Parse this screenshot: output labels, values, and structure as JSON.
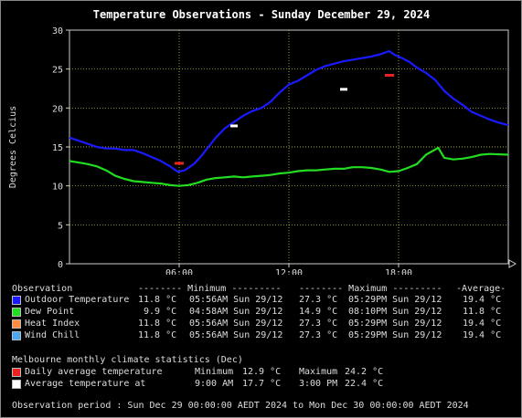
{
  "chart_data": {
    "type": "line",
    "title": "Temperature Observations - Sunday December 29, 2024",
    "ylabel": "Degrees Celcius",
    "xlabel": "",
    "ylim": [
      0,
      30
    ],
    "xlim": [
      0,
      24
    ],
    "yticks": [
      "0",
      "5",
      "10",
      "15",
      "20",
      "25",
      "30"
    ],
    "xticks": [
      {
        "x": 6,
        "label": "06:00"
      },
      {
        "x": 12,
        "label": "12:00"
      },
      {
        "x": 18,
        "label": "18:00"
      }
    ],
    "grid": true,
    "series": [
      {
        "name": "Outdoor Temperature",
        "color": "#1a1aff",
        "points": [
          [
            0,
            16.2
          ],
          [
            0.5,
            15.8
          ],
          [
            1,
            15.4
          ],
          [
            1.5,
            15.0
          ],
          [
            2,
            14.8
          ],
          [
            2.5,
            14.8
          ],
          [
            3,
            14.6
          ],
          [
            3.5,
            14.6
          ],
          [
            4,
            14.2
          ],
          [
            4.5,
            13.7
          ],
          [
            5,
            13.2
          ],
          [
            5.5,
            12.5
          ],
          [
            5.93,
            11.8
          ],
          [
            6.3,
            12.0
          ],
          [
            6.8,
            12.8
          ],
          [
            7.2,
            13.8
          ],
          [
            7.6,
            15.0
          ],
          [
            8,
            16.2
          ],
          [
            8.5,
            17.4
          ],
          [
            9,
            18.2
          ],
          [
            9.5,
            19.0
          ],
          [
            10,
            19.6
          ],
          [
            10.5,
            20.0
          ],
          [
            11,
            20.8
          ],
          [
            11.5,
            22.0
          ],
          [
            12,
            23.0
          ],
          [
            12.5,
            23.5
          ],
          [
            13,
            24.2
          ],
          [
            13.5,
            24.9
          ],
          [
            14,
            25.4
          ],
          [
            14.5,
            25.7
          ],
          [
            15,
            26.0
          ],
          [
            15.5,
            26.2
          ],
          [
            16,
            26.4
          ],
          [
            16.5,
            26.6
          ],
          [
            17,
            26.9
          ],
          [
            17.48,
            27.3
          ],
          [
            17.8,
            26.8
          ],
          [
            18.2,
            26.4
          ],
          [
            18.6,
            25.9
          ],
          [
            19,
            25.2
          ],
          [
            19.5,
            24.5
          ],
          [
            20,
            23.6
          ],
          [
            20.5,
            22.2
          ],
          [
            21,
            21.2
          ],
          [
            21.5,
            20.4
          ],
          [
            22,
            19.5
          ],
          [
            22.5,
            19.0
          ],
          [
            23,
            18.5
          ],
          [
            23.5,
            18.1
          ],
          [
            24,
            17.8
          ]
        ]
      },
      {
        "name": "Dew Point",
        "color": "#22dd22",
        "points": [
          [
            0,
            13.2
          ],
          [
            0.5,
            13.0
          ],
          [
            1,
            12.8
          ],
          [
            1.5,
            12.5
          ],
          [
            2,
            12.0
          ],
          [
            2.5,
            11.3
          ],
          [
            3,
            10.9
          ],
          [
            3.5,
            10.6
          ],
          [
            4,
            10.5
          ],
          [
            4.5,
            10.4
          ],
          [
            5,
            10.3
          ],
          [
            5.5,
            10.1
          ],
          [
            6,
            10.0
          ],
          [
            6.5,
            10.1
          ],
          [
            7,
            10.4
          ],
          [
            7.5,
            10.8
          ],
          [
            8,
            11.0
          ],
          [
            8.5,
            11.1
          ],
          [
            9,
            11.2
          ],
          [
            9.5,
            11.1
          ],
          [
            10,
            11.2
          ],
          [
            10.5,
            11.3
          ],
          [
            11,
            11.4
          ],
          [
            11.5,
            11.6
          ],
          [
            12,
            11.7
          ],
          [
            12.5,
            11.9
          ],
          [
            13,
            12.0
          ],
          [
            13.5,
            12.0
          ],
          [
            14,
            12.1
          ],
          [
            14.5,
            12.2
          ],
          [
            15,
            12.2
          ],
          [
            15.5,
            12.4
          ],
          [
            16,
            12.4
          ],
          [
            16.5,
            12.3
          ],
          [
            17,
            12.1
          ],
          [
            17.5,
            11.8
          ],
          [
            18,
            11.9
          ],
          [
            18.5,
            12.3
          ],
          [
            19,
            12.8
          ],
          [
            19.5,
            14.0
          ],
          [
            20.17,
            14.9
          ],
          [
            20.5,
            13.6
          ],
          [
            21,
            13.4
          ],
          [
            21.5,
            13.5
          ],
          [
            22,
            13.7
          ],
          [
            22.5,
            14.0
          ],
          [
            23,
            14.1
          ],
          [
            24,
            14.0
          ]
        ]
      }
    ],
    "climate_markers": {
      "daily_average": {
        "color": "#ee2222",
        "points": [
          [
            6,
            12.9
          ],
          [
            17.5,
            24.2
          ]
        ]
      },
      "average_at": {
        "color": "#ffffff",
        "points": [
          [
            9,
            17.7
          ],
          [
            15,
            22.4
          ]
        ]
      }
    }
  },
  "legend": {
    "header": {
      "observation": "Observation",
      "minimum": "-------- Minimum ---------",
      "maximum": "-------- Maximum ---------",
      "average": "-Average-"
    },
    "rows": [
      {
        "swatch": "#1a1aff",
        "name": "Outdoor Temperature",
        "min_val": "11.8 °C",
        "min_time": "05:56AM Sun 29/12",
        "max_val": "27.3 °C",
        "max_time": "05:29PM Sun 29/12",
        "avg": "19.4 °C"
      },
      {
        "swatch": "#22dd22",
        "name": "Dew Point",
        "min_val": "9.9 °C",
        "min_time": "04:58AM Sun 29/12",
        "max_val": "14.9 °C",
        "max_time": "08:10PM Sun 29/12",
        "avg": "11.8 °C"
      },
      {
        "swatch": "#ff8c40",
        "name": "Heat Index",
        "min_val": "11.8 °C",
        "min_time": "05:56AM Sun 29/12",
        "max_val": "27.3 °C",
        "max_time": "05:29PM Sun 29/12",
        "avg": "19.4 °C"
      },
      {
        "swatch": "#4aa8ee",
        "name": "Wind Chill",
        "min_val": "11.8 °C",
        "min_time": "05:56AM Sun 29/12",
        "max_val": "27.3 °C",
        "max_time": "05:29PM Sun 29/12",
        "avg": "19.4 °C"
      }
    ]
  },
  "climate": {
    "heading": "Melbourne monthly climate statistics (Dec)",
    "daily": {
      "swatch": "#ee2222",
      "label": "Daily average temperature",
      "min_label": "Minimum",
      "min_val": "12.9 °C",
      "max_label": "Maximum",
      "max_val": "24.2 °C"
    },
    "avg_at": {
      "swatch": "#ffffff",
      "label": "Average temperature at",
      "t1": "9:00 AM",
      "v1": "17.7 °C",
      "t2": "3:00 PM",
      "v2": "22.4 °C"
    }
  },
  "footer": "Observation period : Sun Dec 29 00:00:00 AEDT 2024 to Mon Dec 30 00:00:00 AEDT 2024"
}
